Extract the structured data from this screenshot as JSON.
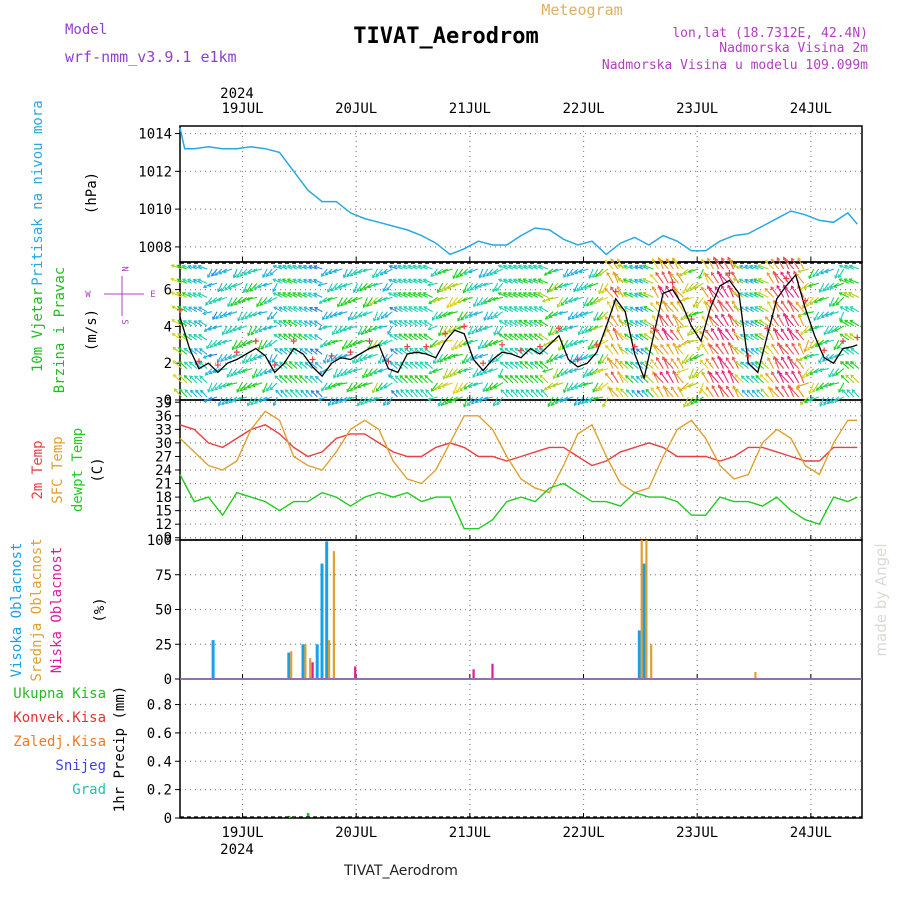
{
  "header": {
    "product": "Meteogram",
    "station": "TIVAT_Aerodrom",
    "model_label": "Model",
    "model_name": "wrf-nmm_v3.9.1 e1km",
    "coords": "lon,lat (18.7312E, 42.4N)",
    "elevation": "Nadmorska Visina 2m",
    "model_elevation": "Nadmorska Visina u modelu 109.099m",
    "footer_station": "TIVAT_Aerodrom",
    "watermark": "made by Angel"
  },
  "time_axis": {
    "year": "2024",
    "days": [
      "19JUL",
      "20JUL",
      "21JUL",
      "22JUL",
      "23JUL",
      "24JUL"
    ]
  },
  "colors": {
    "pressure": "#29a8e0",
    "temp2m": "#e84040",
    "sfc": "#e0a030",
    "dew": "#22cc22",
    "high_cloud": "#1aa0e8",
    "mid_cloud": "#e0a030",
    "low_cloud": "#dd1aa0",
    "total_precip": "#22bb22",
    "conv_precip": "#e83030",
    "frozen_precip": "#f07a20",
    "snow": "#4040e8",
    "graupel": "#20c0b0"
  },
  "chart_data": [
    {
      "type": "line",
      "ylabel": "Pritisak na nivou mora",
      "unit": "(hPa)",
      "yticks": [
        1008,
        1010,
        1012,
        1014
      ],
      "ylim": [
        1007.2,
        1014.4
      ],
      "series": [
        {
          "x": [
            0,
            1,
            3,
            6,
            9,
            12,
            15,
            18,
            21,
            24,
            27,
            30,
            33,
            36,
            39,
            42,
            45,
            48,
            51,
            54,
            57,
            60,
            63,
            66,
            69,
            72,
            75,
            78,
            81,
            84,
            87,
            90,
            93,
            96,
            99,
            102,
            105,
            108,
            111,
            114,
            117,
            120,
            123,
            126,
            129,
            132,
            135,
            138,
            141,
            143
          ],
          "values": [
            1014.3,
            1013.2,
            1013.2,
            1013.3,
            1013.2,
            1013.2,
            1013.3,
            1013.2,
            1013.0,
            1012.0,
            1011.0,
            1010.4,
            1010.4,
            1009.8,
            1009.5,
            1009.3,
            1009.1,
            1008.9,
            1008.6,
            1008.2,
            1007.6,
            1007.9,
            1008.3,
            1008.1,
            1008.1,
            1008.6,
            1009.0,
            1008.9,
            1008.4,
            1008.1,
            1008.3,
            1007.6,
            1008.2,
            1008.5,
            1008.1,
            1008.6,
            1008.3,
            1007.8,
            1007.8,
            1008.3,
            1008.6,
            1008.7,
            1009.1,
            1009.5,
            1009.9,
            1009.7,
            1009.4,
            1009.3,
            1009.8,
            1009.2
          ]
        }
      ]
    },
    {
      "type": "line",
      "ylabel": [
        "10m Vjetar",
        "Brzina i Pravac"
      ],
      "unit": "(m/s)",
      "yticks": [
        0,
        2,
        4,
        6
      ],
      "ylim": [
        0,
        7.5
      ],
      "compass": {
        "w": "W",
        "e": "E",
        "n": "N",
        "s": "S"
      },
      "series": [
        {
          "x": [
            0,
            2,
            4,
            6,
            8,
            10,
            12,
            14,
            16,
            18,
            20,
            22,
            24,
            26,
            28,
            30,
            32,
            34,
            36,
            38,
            40,
            42,
            44,
            46,
            48,
            50,
            52,
            54,
            56,
            58,
            60,
            62,
            64,
            66,
            68,
            70,
            72,
            74,
            76,
            78,
            80,
            82,
            84,
            86,
            88,
            90,
            92,
            94,
            96,
            98,
            100,
            102,
            104,
            106,
            108,
            110,
            112,
            114,
            116,
            118,
            120,
            122,
            124,
            126,
            128,
            130,
            132,
            134,
            136,
            138,
            140,
            142,
            143
          ],
          "values": [
            4.5,
            2.8,
            1.7,
            2.0,
            1.5,
            2.0,
            2.2,
            2.5,
            2.8,
            2.4,
            1.5,
            2.0,
            2.8,
            2.5,
            1.8,
            1.3,
            2.0,
            2.3,
            2.2,
            2.5,
            2.8,
            3.0,
            1.7,
            1.5,
            2.5,
            2.6,
            2.5,
            2.3,
            3.2,
            3.8,
            3.6,
            2.2,
            1.6,
            2.2,
            2.6,
            2.5,
            2.3,
            2.8,
            2.5,
            3.0,
            3.5,
            2.2,
            1.8,
            2.0,
            2.6,
            4.0,
            5.5,
            4.8,
            2.5,
            1.2,
            3.5,
            5.8,
            6.0,
            5.2,
            4.0,
            3.2,
            5.0,
            6.2,
            6.5,
            5.8,
            2.0,
            1.5,
            3.5,
            5.5,
            6.2,
            6.8,
            5.0,
            3.5,
            2.3,
            2.0,
            2.8,
            2.9,
            3.0
          ]
        }
      ]
    },
    {
      "type": "line",
      "ylabel": [
        "2m Temp",
        "SFC Temp",
        "dewpt Temp"
      ],
      "unit": "(C)",
      "yticks": [
        9,
        12,
        15,
        18,
        21,
        24,
        27,
        30,
        33,
        36,
        39
      ],
      "ylim": [
        8.5,
        39.5
      ],
      "series": [
        {
          "name": "2m Temp",
          "x": [
            0,
            3,
            6,
            9,
            12,
            15,
            18,
            21,
            24,
            27,
            30,
            33,
            36,
            39,
            42,
            45,
            48,
            51,
            54,
            57,
            60,
            63,
            66,
            69,
            72,
            75,
            78,
            81,
            84,
            87,
            90,
            93,
            96,
            99,
            102,
            105,
            108,
            111,
            114,
            117,
            120,
            123,
            126,
            129,
            132,
            135,
            138,
            141,
            143
          ],
          "values": [
            34,
            33,
            30,
            29,
            31,
            33,
            34,
            32,
            29,
            27,
            28,
            31,
            32,
            32,
            30,
            28,
            27,
            27,
            29,
            30,
            29,
            27,
            27,
            26,
            27,
            28,
            29,
            29,
            27,
            25,
            26,
            28,
            29,
            30,
            29,
            27,
            27,
            27,
            26,
            27,
            29,
            29,
            28,
            27,
            26,
            26,
            29,
            29,
            29
          ]
        },
        {
          "name": "SFC Temp",
          "x": [
            0,
            3,
            6,
            9,
            12,
            15,
            18,
            21,
            24,
            27,
            30,
            33,
            36,
            39,
            42,
            45,
            48,
            51,
            54,
            57,
            60,
            63,
            66,
            69,
            72,
            75,
            78,
            81,
            84,
            87,
            90,
            93,
            96,
            99,
            102,
            105,
            108,
            111,
            114,
            117,
            120,
            123,
            126,
            129,
            132,
            135,
            138,
            141,
            143
          ],
          "values": [
            31,
            28,
            25,
            24,
            26,
            33,
            37,
            35,
            27,
            25,
            24,
            28,
            33,
            35,
            33,
            26,
            22,
            21,
            24,
            30,
            36,
            36,
            33,
            27,
            22,
            20,
            19,
            25,
            32,
            34,
            27,
            21,
            19,
            20,
            27,
            33,
            35,
            31,
            25,
            22,
            23,
            30,
            33,
            31,
            25,
            23,
            30,
            35,
            35
          ]
        },
        {
          "name": "dewpt Temp",
          "x": [
            0,
            3,
            6,
            9,
            12,
            15,
            18,
            21,
            24,
            27,
            30,
            33,
            36,
            39,
            42,
            45,
            48,
            51,
            54,
            57,
            60,
            63,
            66,
            69,
            72,
            75,
            78,
            81,
            84,
            87,
            90,
            93,
            96,
            99,
            102,
            105,
            108,
            111,
            114,
            117,
            120,
            123,
            126,
            129,
            132,
            135,
            138,
            141,
            143
          ],
          "values": [
            23,
            17,
            18,
            14,
            19,
            18,
            17,
            15,
            17,
            17,
            19,
            18,
            16,
            18,
            19,
            18,
            19,
            17,
            18,
            18,
            11,
            11,
            13,
            17,
            18,
            17,
            20,
            21,
            19,
            17,
            17,
            16,
            19,
            18,
            18,
            17,
            14,
            14,
            18,
            17,
            17,
            16,
            18,
            15,
            13,
            12,
            18,
            17,
            18
          ]
        }
      ]
    },
    {
      "type": "bar",
      "ylabel": [
        "Visoka Oblacnost",
        "Srednja Oblacnost",
        "Niska Oblacnost"
      ],
      "unit": "(%)",
      "yticks": [
        0,
        25,
        50,
        75,
        100
      ],
      "ylim": [
        0,
        100
      ],
      "series": [
        {
          "name": "Visoka Oblacnost",
          "x": [
            7,
            23,
            26,
            29,
            30,
            31,
            97,
            98
          ],
          "values": [
            28,
            19,
            25,
            25,
            83,
            99,
            35,
            83
          ]
        },
        {
          "name": "Srednja Oblacnost",
          "x": [
            23,
            26,
            27,
            31,
            32,
            97,
            98,
            99,
            121
          ],
          "values": [
            20,
            25,
            15,
            28,
            92,
            100,
            100,
            25,
            5
          ]
        },
        {
          "name": "Niska Oblacnost",
          "x": [
            27,
            36,
            61,
            65
          ],
          "values": [
            12,
            9,
            7,
            11
          ]
        }
      ]
    },
    {
      "type": "bar",
      "ylabel": "1hr Precip",
      "unit": "(mm)",
      "yticks": [
        0,
        0.2,
        0.4,
        0.6,
        0.8
      ],
      "ylim": [
        0,
        0.98
      ],
      "legend": [
        "Ukupna Kisa",
        "Konvek.Kisa",
        "Zaledj.Kisa",
        "Snijeg",
        "Grad"
      ],
      "series": [
        {
          "name": "Ukupna Kisa",
          "x": [
            23,
            27
          ],
          "values": [
            0.015,
            0.035
          ]
        },
        {
          "name": "Konvek.Kisa",
          "x": [
            24
          ],
          "values": [
            0.01
          ]
        }
      ]
    }
  ]
}
